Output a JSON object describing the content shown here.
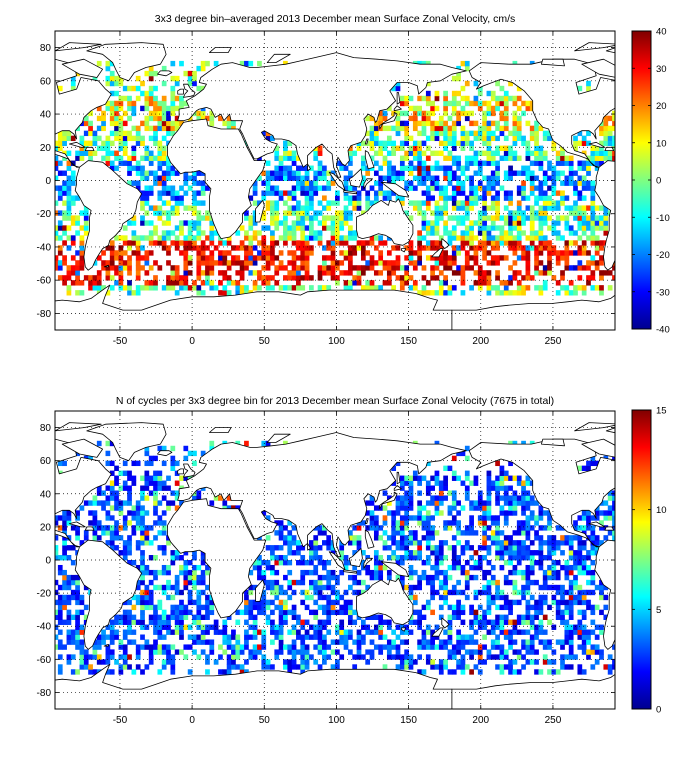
{
  "chart_data": [
    {
      "type": "heatmap",
      "title": "3x3 degree bin–averaged 2013 December mean Surface Zonal Velocity, cm/s",
      "xlabel": "",
      "ylabel": "",
      "xlim": [
        -95,
        293
      ],
      "ylim": [
        -90,
        90
      ],
      "x_ticks": [
        -50,
        0,
        50,
        100,
        150,
        200,
        250
      ],
      "y_ticks": [
        -80,
        -60,
        -40,
        -20,
        0,
        20,
        40,
        60,
        80
      ],
      "grid": true,
      "grid_style": "dotted",
      "bin_size_deg": 3,
      "colormap": "jet",
      "colorbar": {
        "min": -40,
        "max": 40,
        "ticks": [
          -40,
          -30,
          -20,
          -10,
          0,
          10,
          20,
          30,
          40
        ],
        "placement": "right"
      },
      "color_ramp": [
        "#00008f",
        "#0000ff",
        "#0080ff",
        "#00ffff",
        "#80ff80",
        "#ffff00",
        "#ff8000",
        "#ff0000",
        "#800000"
      ]
    },
    {
      "type": "heatmap",
      "title": "N of cycles per 3x3 degree bin for 2013 December mean Surface Zonal Velocity (7675 in total)",
      "xlabel": "",
      "ylabel": "",
      "xlim": [
        -95,
        293
      ],
      "ylim": [
        -90,
        90
      ],
      "x_ticks": [
        -50,
        0,
        50,
        100,
        150,
        200,
        250
      ],
      "y_ticks": [
        -80,
        -60,
        -40,
        -20,
        0,
        20,
        40,
        60,
        80
      ],
      "grid": true,
      "grid_style": "dotted",
      "bin_size_deg": 3,
      "colormap": "jet",
      "colorbar": {
        "min": 0,
        "max": 15,
        "ticks": [
          0,
          5,
          10,
          15
        ],
        "placement": "right"
      },
      "color_ramp": [
        "#00008f",
        "#0000ff",
        "#0080ff",
        "#00ffff",
        "#80ff80",
        "#ffff00",
        "#ff8000",
        "#ff0000",
        "#800000"
      ]
    }
  ]
}
